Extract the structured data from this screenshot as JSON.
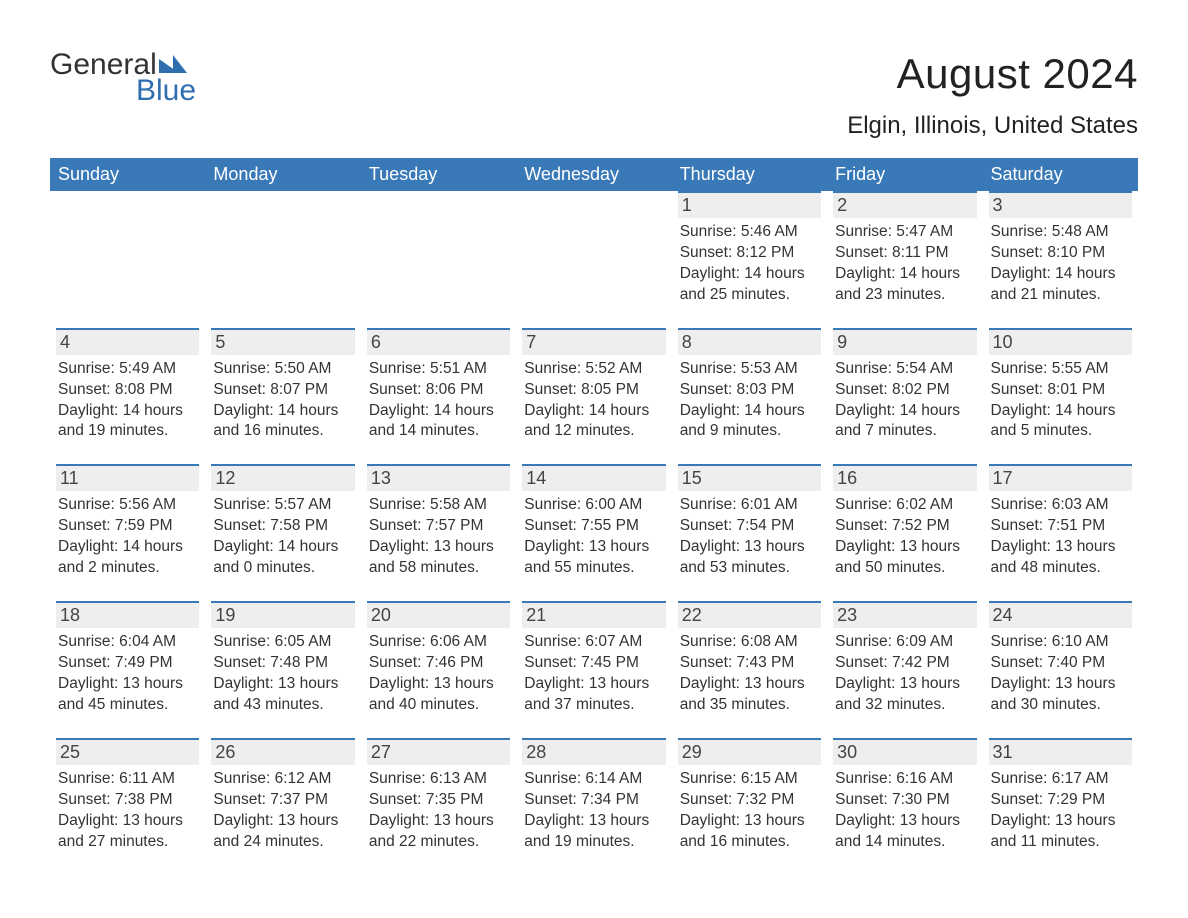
{
  "brand": {
    "word1": "General",
    "word2": "Blue",
    "word1_color": "#333333",
    "word2_color": "#2f6fb0",
    "mark_color": "#2f6fb0"
  },
  "header": {
    "title": "August 2024",
    "location": "Elgin, Illinois, United States"
  },
  "colors": {
    "header_row_bg": "#3a79b7",
    "header_row_text": "#ffffff",
    "daynum_bg": "#eeeeee",
    "week_divider": "#3a79b7",
    "body_text": "#333333",
    "page_bg": "#ffffff"
  },
  "days_of_week": [
    "Sunday",
    "Monday",
    "Tuesday",
    "Wednesday",
    "Thursday",
    "Friday",
    "Saturday"
  ],
  "weeks": [
    [
      null,
      null,
      null,
      null,
      {
        "n": "1",
        "sunrise": "Sunrise: 5:46 AM",
        "sunset": "Sunset: 8:12 PM",
        "daylight": "Daylight: 14 hours and 25 minutes."
      },
      {
        "n": "2",
        "sunrise": "Sunrise: 5:47 AM",
        "sunset": "Sunset: 8:11 PM",
        "daylight": "Daylight: 14 hours and 23 minutes."
      },
      {
        "n": "3",
        "sunrise": "Sunrise: 5:48 AM",
        "sunset": "Sunset: 8:10 PM",
        "daylight": "Daylight: 14 hours and 21 minutes."
      }
    ],
    [
      {
        "n": "4",
        "sunrise": "Sunrise: 5:49 AM",
        "sunset": "Sunset: 8:08 PM",
        "daylight": "Daylight: 14 hours and 19 minutes."
      },
      {
        "n": "5",
        "sunrise": "Sunrise: 5:50 AM",
        "sunset": "Sunset: 8:07 PM",
        "daylight": "Daylight: 14 hours and 16 minutes."
      },
      {
        "n": "6",
        "sunrise": "Sunrise: 5:51 AM",
        "sunset": "Sunset: 8:06 PM",
        "daylight": "Daylight: 14 hours and 14 minutes."
      },
      {
        "n": "7",
        "sunrise": "Sunrise: 5:52 AM",
        "sunset": "Sunset: 8:05 PM",
        "daylight": "Daylight: 14 hours and 12 minutes."
      },
      {
        "n": "8",
        "sunrise": "Sunrise: 5:53 AM",
        "sunset": "Sunset: 8:03 PM",
        "daylight": "Daylight: 14 hours and 9 minutes."
      },
      {
        "n": "9",
        "sunrise": "Sunrise: 5:54 AM",
        "sunset": "Sunset: 8:02 PM",
        "daylight": "Daylight: 14 hours and 7 minutes."
      },
      {
        "n": "10",
        "sunrise": "Sunrise: 5:55 AM",
        "sunset": "Sunset: 8:01 PM",
        "daylight": "Daylight: 14 hours and 5 minutes."
      }
    ],
    [
      {
        "n": "11",
        "sunrise": "Sunrise: 5:56 AM",
        "sunset": "Sunset: 7:59 PM",
        "daylight": "Daylight: 14 hours and 2 minutes."
      },
      {
        "n": "12",
        "sunrise": "Sunrise: 5:57 AM",
        "sunset": "Sunset: 7:58 PM",
        "daylight": "Daylight: 14 hours and 0 minutes."
      },
      {
        "n": "13",
        "sunrise": "Sunrise: 5:58 AM",
        "sunset": "Sunset: 7:57 PM",
        "daylight": "Daylight: 13 hours and 58 minutes."
      },
      {
        "n": "14",
        "sunrise": "Sunrise: 6:00 AM",
        "sunset": "Sunset: 7:55 PM",
        "daylight": "Daylight: 13 hours and 55 minutes."
      },
      {
        "n": "15",
        "sunrise": "Sunrise: 6:01 AM",
        "sunset": "Sunset: 7:54 PM",
        "daylight": "Daylight: 13 hours and 53 minutes."
      },
      {
        "n": "16",
        "sunrise": "Sunrise: 6:02 AM",
        "sunset": "Sunset: 7:52 PM",
        "daylight": "Daylight: 13 hours and 50 minutes."
      },
      {
        "n": "17",
        "sunrise": "Sunrise: 6:03 AM",
        "sunset": "Sunset: 7:51 PM",
        "daylight": "Daylight: 13 hours and 48 minutes."
      }
    ],
    [
      {
        "n": "18",
        "sunrise": "Sunrise: 6:04 AM",
        "sunset": "Sunset: 7:49 PM",
        "daylight": "Daylight: 13 hours and 45 minutes."
      },
      {
        "n": "19",
        "sunrise": "Sunrise: 6:05 AM",
        "sunset": "Sunset: 7:48 PM",
        "daylight": "Daylight: 13 hours and 43 minutes."
      },
      {
        "n": "20",
        "sunrise": "Sunrise: 6:06 AM",
        "sunset": "Sunset: 7:46 PM",
        "daylight": "Daylight: 13 hours and 40 minutes."
      },
      {
        "n": "21",
        "sunrise": "Sunrise: 6:07 AM",
        "sunset": "Sunset: 7:45 PM",
        "daylight": "Daylight: 13 hours and 37 minutes."
      },
      {
        "n": "22",
        "sunrise": "Sunrise: 6:08 AM",
        "sunset": "Sunset: 7:43 PM",
        "daylight": "Daylight: 13 hours and 35 minutes."
      },
      {
        "n": "23",
        "sunrise": "Sunrise: 6:09 AM",
        "sunset": "Sunset: 7:42 PM",
        "daylight": "Daylight: 13 hours and 32 minutes."
      },
      {
        "n": "24",
        "sunrise": "Sunrise: 6:10 AM",
        "sunset": "Sunset: 7:40 PM",
        "daylight": "Daylight: 13 hours and 30 minutes."
      }
    ],
    [
      {
        "n": "25",
        "sunrise": "Sunrise: 6:11 AM",
        "sunset": "Sunset: 7:38 PM",
        "daylight": "Daylight: 13 hours and 27 minutes."
      },
      {
        "n": "26",
        "sunrise": "Sunrise: 6:12 AM",
        "sunset": "Sunset: 7:37 PM",
        "daylight": "Daylight: 13 hours and 24 minutes."
      },
      {
        "n": "27",
        "sunrise": "Sunrise: 6:13 AM",
        "sunset": "Sunset: 7:35 PM",
        "daylight": "Daylight: 13 hours and 22 minutes."
      },
      {
        "n": "28",
        "sunrise": "Sunrise: 6:14 AM",
        "sunset": "Sunset: 7:34 PM",
        "daylight": "Daylight: 13 hours and 19 minutes."
      },
      {
        "n": "29",
        "sunrise": "Sunrise: 6:15 AM",
        "sunset": "Sunset: 7:32 PM",
        "daylight": "Daylight: 13 hours and 16 minutes."
      },
      {
        "n": "30",
        "sunrise": "Sunrise: 6:16 AM",
        "sunset": "Sunset: 7:30 PM",
        "daylight": "Daylight: 13 hours and 14 minutes."
      },
      {
        "n": "31",
        "sunrise": "Sunrise: 6:17 AM",
        "sunset": "Sunset: 7:29 PM",
        "daylight": "Daylight: 13 hours and 11 minutes."
      }
    ]
  ]
}
